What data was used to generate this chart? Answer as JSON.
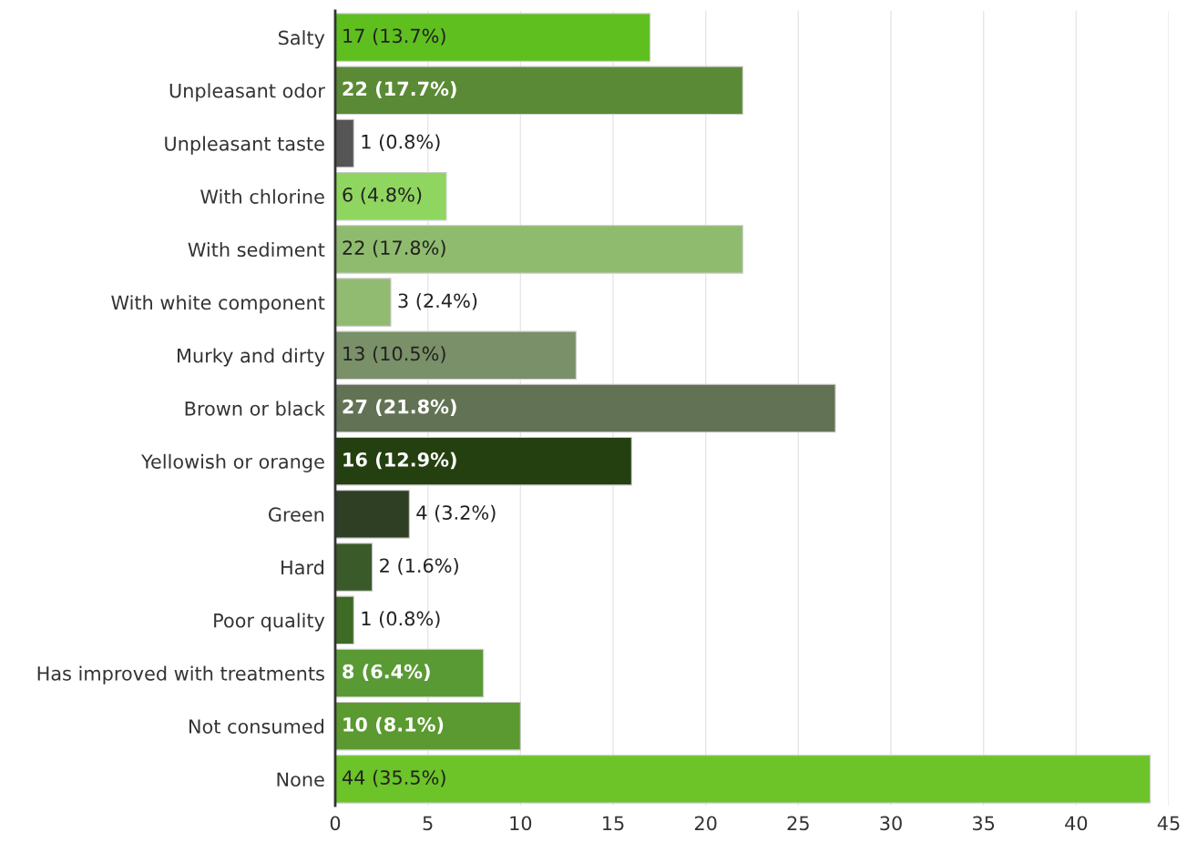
{
  "chart_data": {
    "type": "bar",
    "orientation": "horizontal",
    "categories": [
      "Salty",
      "Unpleasant odor",
      "Unpleasant taste",
      "With chlorine",
      "With sediment",
      "With white component",
      "Murky and dirty",
      "Brown or black",
      "Yellowish or orange",
      "Green",
      "Hard",
      "Poor quality",
      "Has improved with treatments",
      "Not consumed",
      "None"
    ],
    "values": [
      17,
      22,
      1,
      6,
      22,
      3,
      13,
      27,
      16,
      4,
      2,
      1,
      8,
      10,
      44
    ],
    "value_labels": [
      "17 (13.7%)",
      "22 (17.7%)",
      "1 (0.8%)",
      "6 (4.8%)",
      "22 (17.8%)",
      "3 (2.4%)",
      "13 (10.5%)",
      "27 (21.8%)",
      "16 (12.9%)",
      "4 (3.2%)",
      "2 (1.6%)",
      "1 (0.8%)",
      "8 (6.4%)",
      "10 (8.1%)",
      "44 (35.5%)"
    ],
    "colors": [
      "#5fbf1f",
      "#5a8a35",
      "#555555",
      "#8fd660",
      "#8fbb6e",
      "#90bb70",
      "#7a9068",
      "#627254",
      "#244010",
      "#2f3f24",
      "#3a5a2a",
      "#3d6a25",
      "#5a9a35",
      "#5a9a30",
      "#6cc428"
    ],
    "xlim": [
      0,
      45
    ],
    "xticks": [
      0,
      5,
      10,
      15,
      20,
      25,
      30,
      35,
      40,
      45
    ],
    "grid": "x",
    "legend": false
  }
}
